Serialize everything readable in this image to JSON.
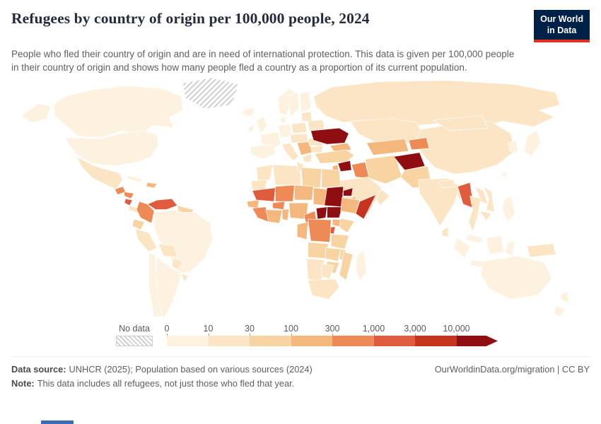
{
  "header": {
    "title": "Refugees by country of origin per 100,000 people, 2024",
    "subtitle": "People who fled their country of origin and are in need of international protection. This data is given per 100,000 people in their country of origin and shows how many people fled a country as a proportion of its current population.",
    "logo": {
      "line1": "Our World",
      "line2": "in Data",
      "bg": "#002147",
      "accent": "#e0301e"
    }
  },
  "legend": {
    "no_data_label": "No data",
    "ticks": [
      "0",
      "10",
      "30",
      "100",
      "300",
      "1,000",
      "3,000",
      "10,000"
    ],
    "bin_colors": [
      "#fdf2e0",
      "#fbe5c4",
      "#f8d4a3",
      "#f4b87e",
      "#ee8a55",
      "#e05c3e",
      "#c6341f",
      "#8e0e12"
    ]
  },
  "map": {
    "default_color": "#fdf2e0",
    "no_data_value": "no-data",
    "region_colors": {
      "greenland": "no-data",
      "canada": "#fdf2e0",
      "usa": "#fdf2e0",
      "mexico": "#fbe5c4",
      "guatemala": "#ee8a55",
      "honduras": "#ee8a55",
      "nicaragua": "#e05c3e",
      "costa-rica-panama": "#fbe5c4",
      "cuba": "#fdf2e0",
      "hispaniola": "#f4b87e",
      "venezuela": "#e05c3e",
      "colombia": "#ee8a55",
      "guyanas": "#f8d4a3",
      "ecuador": "#f8d4a3",
      "peru": "#fbe5c4",
      "brazil": "#fdf2e0",
      "bolivia": "#fbe5c4",
      "paraguay": "#fbe5c4",
      "chile": "#fdf2e0",
      "argentina": "#fdf2e0",
      "uruguay": "#fbe5c4",
      "iceland": "#fdf2e0",
      "ireland": "#fdf2e0",
      "uk": "#fdf2e0",
      "norway": "#fdf2e0",
      "sweden": "#fdf2e0",
      "finland": "#fdf2e0",
      "denmark": "#fdf2e0",
      "germany": "#fdf2e0",
      "france": "#fdf2e0",
      "iberia": "#fdf2e0",
      "italy": "#fbe5c4",
      "poland": "#fbe5c4",
      "central-europe": "#fbe5c4",
      "balkans": "#f4b87e",
      "greece": "#fbe5c4",
      "romania": "#fbe5c4",
      "bulgaria": "#fbe5c4",
      "baltics": "#fbe5c4",
      "belarus": "#fbe5c4",
      "ukraine": "#8e0e12",
      "russia": "#fbe5c4",
      "kazakhstan": "#fbe5c4",
      "caucasus": "#f4b87e",
      "turkey": "#f8d4a3",
      "syria": "#8e0e12",
      "levant": "#f4b87e",
      "iraq": "#ee8a55",
      "iran": "#f8d4a3",
      "saudi-arabia": "#fbe5c4",
      "yemen": "#f4b87e",
      "oman": "#fbe5c4",
      "turkmenistan-uzbekistan": "#f4b87e",
      "kyrgyzstan-tajikistan": "#ee8a55",
      "afghanistan": "#8e0e12",
      "pakistan": "#f8d4a3",
      "india": "#fbe5c4",
      "nepal": "#fbe5c4",
      "bangladesh": "#fbe5c4",
      "sri-lanka": "#fbe5c4",
      "china": "#fbe5c4",
      "mongolia": "#fbe5c4",
      "korea": "#fdf2e0",
      "japan": "#fdf2e0",
      "taiwan": "#fdf2e0",
      "myanmar": "#e05c3e",
      "thailand": "#fbe5c4",
      "laos": "#fbe5c4",
      "vietnam": "#fbe5c4",
      "cambodia": "#fbe5c4",
      "malaysia": "#fdf2e0",
      "indonesia": "#fdf2e0",
      "new-guinea": "#fbe5c4",
      "philippines": "#fdf2e0",
      "morocco": "#fbe5c4",
      "algeria": "#fbe5c4",
      "tunisia": "#fbe5c4",
      "libya": "#f8d4a3",
      "egypt": "#f8d4a3",
      "western-sahara": "#fbe5c4",
      "mauritania": "#e05c3e",
      "mali": "#ee8a55",
      "niger": "#f4b87e",
      "chad": "#f4b87e",
      "sudan": "#8e0e12",
      "eritrea": "#8e0e12",
      "djibouti": "#f4b87e",
      "senegal": "#f4b87e",
      "guinea": "#ee8a55",
      "burkina-faso": "#ee8a55",
      "ivory-coast-ghana": "#f4b87e",
      "togo-benin": "#f4b87e",
      "nigeria": "#f4b87e",
      "cameroon": "#ee8a55",
      "central-african-republic": "#8e0e12",
      "south-sudan": "#8e0e12",
      "ethiopia": "#f4b87e",
      "somalia": "#c6341f",
      "uganda": "#f4b87e",
      "kenya": "#f8d4a3",
      "rwanda-burundi": "#e05c3e",
      "drc": "#ee8a55",
      "congo-gabon": "#f4b87e",
      "tanzania": "#f8d4a3",
      "angola": "#f8d4a3",
      "zambia": "#f8d4a3",
      "malawi": "#f8d4a3",
      "mozambique": "#f8d4a3",
      "zimbabwe": "#f8d4a3",
      "namibia": "#fbe5c4",
      "botswana": "#fbe5c4",
      "south-africa": "#fbe5c4",
      "madagascar": "#fdf2e0",
      "australia": "#fdf2e0",
      "new-zealand": "#fdf2e0"
    }
  },
  "footer": {
    "sources_label": "Data source:",
    "sources_text": "UNHCR (2025); Population based on various sources (2024)",
    "rights": "OurWorldinData.org/migration | CC BY",
    "note_label": "Note:",
    "note_text": "This data includes all refugees, not just those who fled that year."
  }
}
